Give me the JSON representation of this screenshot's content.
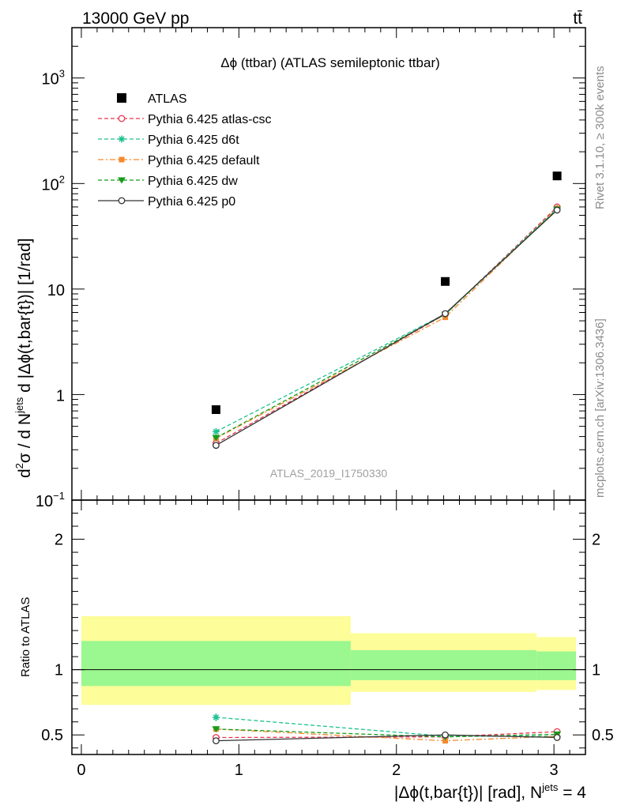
{
  "header": {
    "energy_label": "13000 GeV pp",
    "process_label": "tt̄"
  },
  "side": {
    "rivet_label": "Rivet 3.1.10, ≥ 300k events",
    "mcplots_label": "mcplots.cern.ch [arXiv:1306.3436]"
  },
  "chart_data": [
    {
      "type": "scatter",
      "title": "Δϕ (ttbar) (ATLAS semileptonic ttbar)",
      "ylabel": "d²σ / d N^jets d |Δϕ(t,bar{t})| [1/rad]",
      "ylabel_parts": {
        "a": "d",
        "a_sup": "2",
        "b": "σ  /  d N",
        "b_sup": "jets",
        "c": " d |Δϕ(t,bar{t})| [1/rad]"
      },
      "yscale": "log",
      "ylim": [
        0.1,
        3000
      ],
      "xlim": [
        -0.06,
        3.2
      ],
      "y_ticks": [
        {
          "value": 0.1,
          "label": "10",
          "sup": "−1"
        },
        {
          "value": 1,
          "label": "1",
          "sup": ""
        },
        {
          "value": 10,
          "label": "10",
          "sup": ""
        },
        {
          "value": 100,
          "label": "10",
          "sup": "2"
        },
        {
          "value": 1000,
          "label": "10",
          "sup": "3"
        }
      ],
      "watermark": "ATLAS_2019_I1750330",
      "legend_position": "top-left",
      "data": {
        "name": "ATLAS",
        "x": [
          0.855,
          2.31,
          3.02
        ],
        "y": [
          0.72,
          11.8,
          118
        ]
      },
      "series": [
        {
          "name": "Pythia 6.425 atlas-csc",
          "color": "#e8344f",
          "marker": "open-circle",
          "dash": "5,3",
          "x": [
            0.855,
            2.31,
            3.02
          ],
          "y": [
            0.345,
            5.75,
            60
          ]
        },
        {
          "name": "Pythia 6.425 d6t",
          "color": "#1dc190",
          "marker": "star",
          "dash": "5,3",
          "x": [
            0.855,
            2.31,
            3.02
          ],
          "y": [
            0.445,
            5.8,
            58
          ]
        },
        {
          "name": "Pythia 6.425 default",
          "color": "#f58a2e",
          "marker": "filled-square",
          "dash": "7,3,2,3",
          "x": [
            0.855,
            2.31,
            3.02
          ],
          "y": [
            0.385,
            5.4,
            58
          ]
        },
        {
          "name": "Pythia 6.425 dw",
          "color": "#169c1b",
          "marker": "filled-triangle-down",
          "dash": "5,3",
          "x": [
            0.855,
            2.31,
            3.02
          ],
          "y": [
            0.39,
            5.75,
            57
          ]
        },
        {
          "name": "Pythia 6.425 p0",
          "color": "#333333",
          "marker": "open-circle",
          "dash": "",
          "x": [
            0.855,
            2.31,
            3.02
          ],
          "y": [
            0.33,
            5.85,
            56
          ]
        }
      ]
    },
    {
      "type": "scatter",
      "ylabel": "Ratio to ATLAS",
      "xlabel": "|Δϕ(t,bar{t})| [rad], N",
      "xlabel_sup": "jets",
      "xlabel_tail": " = 4",
      "ylim": [
        0.35,
        2.3
      ],
      "xlim": [
        -0.06,
        3.2
      ],
      "x_ticks": [
        0,
        1,
        2,
        3
      ],
      "y_ticks": [
        0.5,
        1,
        2
      ],
      "uncertainty_bands": [
        {
          "x0": 0.0,
          "x1": 1.71,
          "yellow": [
            0.73,
            1.41
          ],
          "green": [
            0.875,
            1.22
          ]
        },
        {
          "x0": 1.71,
          "x1": 2.89,
          "yellow": [
            0.83,
            1.28
          ],
          "green": [
            0.92,
            1.15
          ]
        },
        {
          "x0": 2.89,
          "x1": 3.14,
          "yellow": [
            0.845,
            1.25
          ],
          "green": [
            0.92,
            1.14
          ]
        }
      ],
      "series": [
        {
          "name": "Pythia 6.425 atlas-csc",
          "x": [
            0.855,
            2.31,
            3.02
          ],
          "y": [
            0.48,
            0.485,
            0.525
          ],
          "err": [
            0.0,
            0.0,
            0.0
          ]
        },
        {
          "name": "Pythia 6.425 d6t",
          "x": [
            0.855,
            2.31,
            3.02
          ],
          "y": [
            0.635,
            0.49,
            0.49
          ],
          "err": [
            0.03,
            0.0,
            0.0
          ]
        },
        {
          "name": "Pythia 6.425 default",
          "x": [
            0.855,
            2.31,
            3.02
          ],
          "y": [
            0.545,
            0.455,
            0.49
          ],
          "err": [
            0.015,
            0.0,
            0.0
          ]
        },
        {
          "name": "Pythia 6.425 dw",
          "x": [
            0.855,
            2.31,
            3.02
          ],
          "y": [
            0.545,
            0.485,
            0.505
          ],
          "err": [
            0.015,
            0.0,
            0.0
          ]
        },
        {
          "name": "Pythia 6.425 p0",
          "x": [
            0.855,
            2.31,
            3.02
          ],
          "y": [
            0.455,
            0.5,
            0.48
          ],
          "err": [
            0.025,
            0.0,
            0.0
          ]
        }
      ]
    }
  ]
}
